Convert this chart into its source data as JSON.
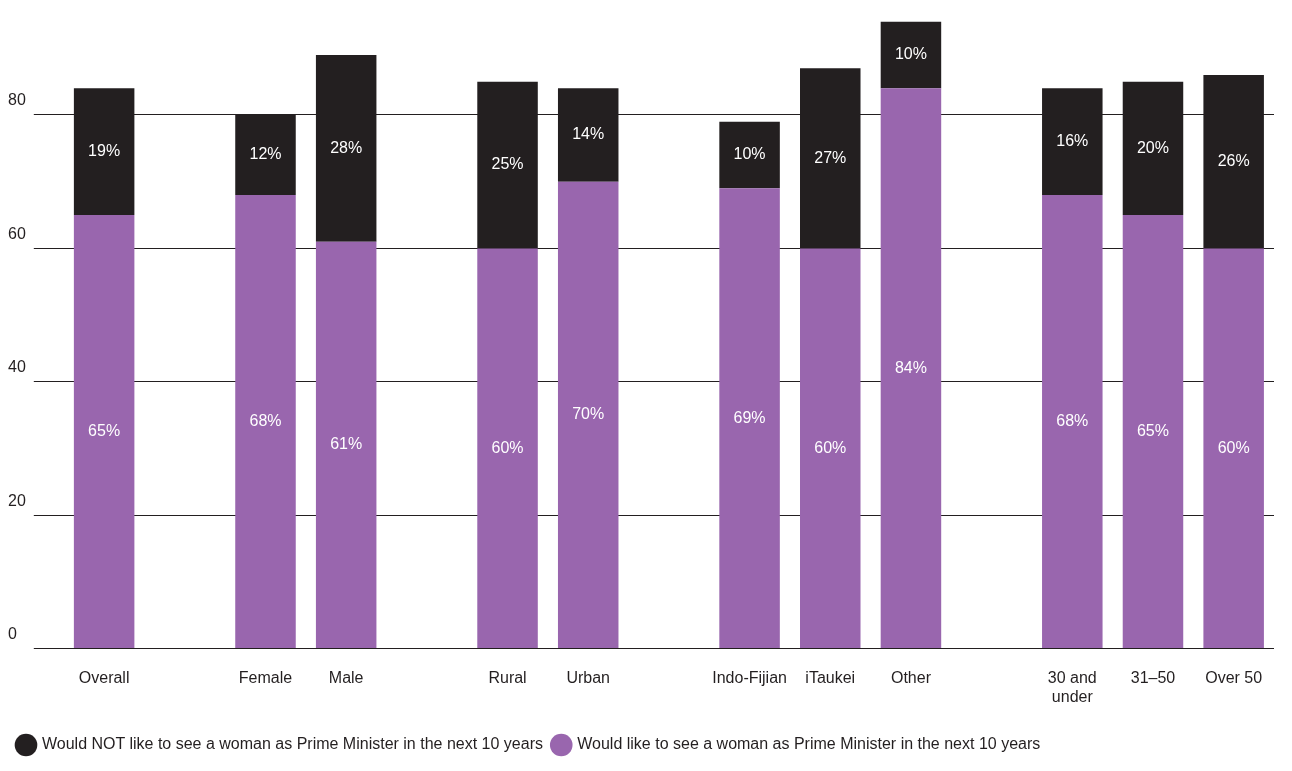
{
  "chart_data": {
    "type": "bar",
    "stacked": true,
    "categories": [
      "Overall",
      null,
      "Female",
      "Male",
      null,
      "Rural",
      "Urban",
      null,
      "Indo-Fijian",
      "iTaukei",
      "Other",
      null,
      "30 and under",
      "31–50",
      "Over 50"
    ],
    "series": [
      {
        "name": "Would like to see a woman as Prime Minister in the next 10 years",
        "color": "#9966ae",
        "values": [
          65,
          null,
          68,
          61,
          null,
          60,
          70,
          null,
          69,
          60,
          84,
          null,
          68,
          65,
          60
        ],
        "value_labels": [
          "65%",
          null,
          "68%",
          "61%",
          null,
          "60%",
          "70%",
          null,
          "69%",
          "60%",
          "84%",
          null,
          "68%",
          "65%",
          "60%"
        ]
      },
      {
        "name": "Would NOT like to see a woman as Prime Minister in the next 10 years",
        "color": "#231f20",
        "values": [
          19,
          null,
          12,
          28,
          null,
          25,
          14,
          null,
          10,
          27,
          10,
          null,
          16,
          20,
          26
        ],
        "value_labels": [
          "19%",
          null,
          "12%",
          "28%",
          null,
          "25%",
          "14%",
          null,
          "10%",
          "27%",
          "10%",
          null,
          "16%",
          "20%",
          "26%"
        ]
      }
    ],
    "ylim": [
      0,
      94
    ],
    "yticks": [
      0,
      20,
      40,
      60,
      80
    ],
    "grid": "y",
    "legend": "bottom left"
  }
}
